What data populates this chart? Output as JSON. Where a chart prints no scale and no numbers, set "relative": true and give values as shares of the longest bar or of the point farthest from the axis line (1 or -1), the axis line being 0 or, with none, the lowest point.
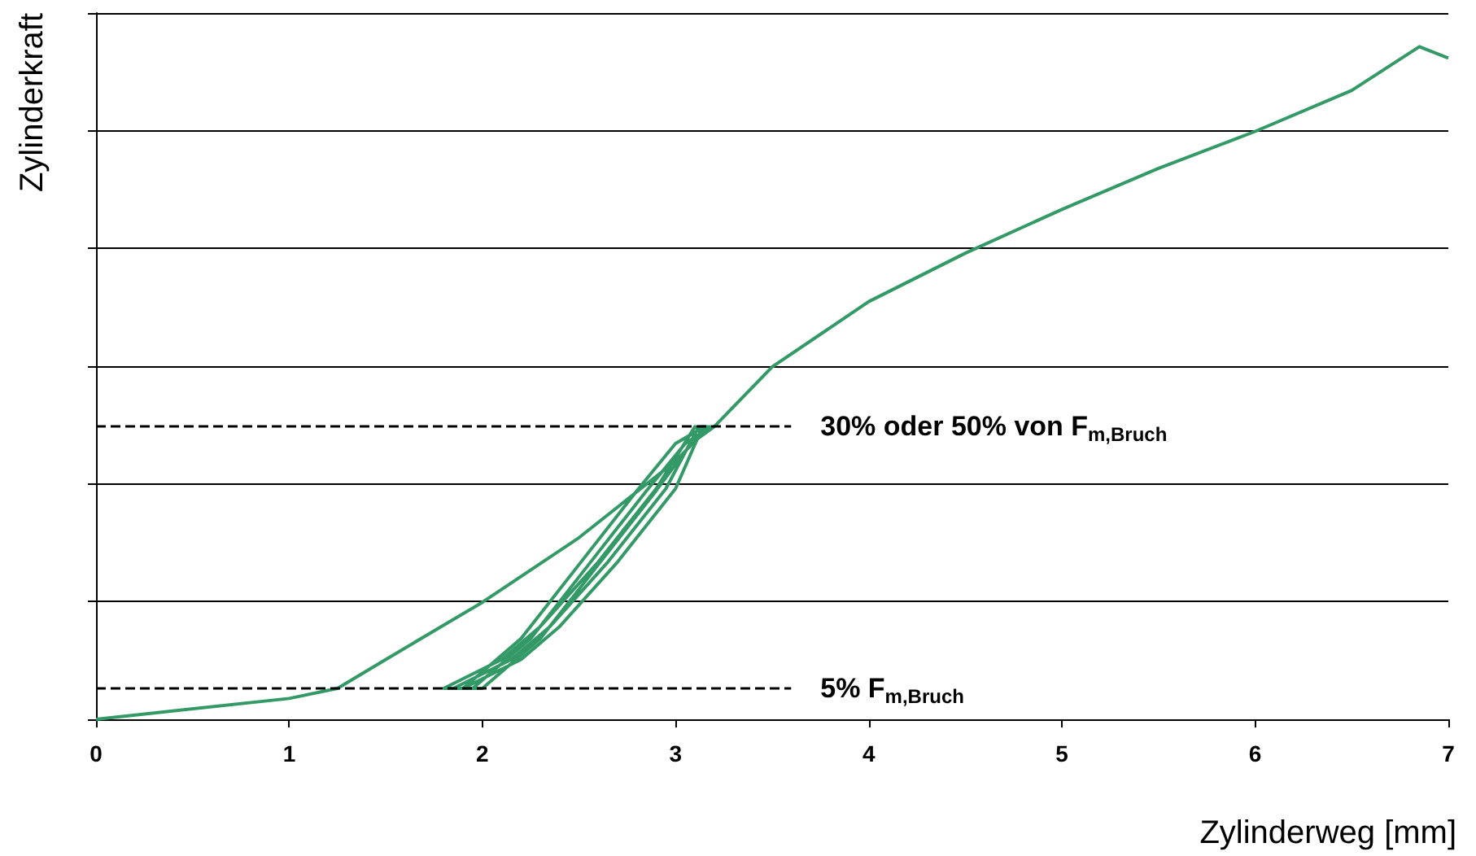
{
  "chart_data": {
    "type": "line",
    "relative": true,
    "xlabel": "Zylinderweg [mm]",
    "ylabel": "Zylinderkraft",
    "xlim": [
      0,
      7
    ],
    "xticks": [
      0,
      1,
      2,
      3,
      4,
      5,
      6,
      7
    ],
    "grid": "y",
    "marker": "none",
    "line_style": "solid",
    "series": [
      {
        "color": "#339966",
        "x": [
          0,
          1,
          1.25,
          1.5,
          2,
          2.5,
          3,
          3.15,
          3.1,
          2.9,
          2.6,
          2.3,
          2.1,
          1.8,
          1.9,
          2.2,
          2.5,
          2.8,
          3.0,
          3.15,
          3.12,
          2.95,
          2.65,
          2.35,
          2.15,
          1.85,
          1.95,
          2.25,
          2.55,
          2.85,
          3.05,
          3.18,
          3.14,
          3.0,
          2.7,
          2.4,
          2.2,
          1.9,
          2.0,
          2.3,
          2.6,
          2.9,
          3.08,
          3.2,
          3.5,
          4,
          4.5,
          5,
          5.5,
          6,
          6.5,
          6.85,
          7
        ],
        "values": [
          0,
          0.031,
          0.046,
          0.089,
          0.174,
          0.27,
          0.384,
          0.428,
          0.435,
          0.343,
          0.234,
          0.138,
          0.089,
          0.046,
          0.046,
          0.12,
          0.23,
          0.34,
          0.41,
          0.435,
          0.435,
          0.343,
          0.234,
          0.138,
          0.089,
          0.046,
          0.046,
          0.12,
          0.23,
          0.34,
          0.41,
          0.435,
          0.435,
          0.343,
          0.234,
          0.138,
          0.089,
          0.046,
          0.046,
          0.12,
          0.23,
          0.34,
          0.41,
          0.435,
          0.524,
          0.621,
          0.693,
          0.758,
          0.819,
          0.874,
          0.935,
          1,
          0.983
        ]
      }
    ],
    "ref_lines": [
      {
        "axis": "y",
        "value": 0.046,
        "label": "5% F$_{m,Bruch}$",
        "color": "#000000",
        "line_style": "dashed"
      },
      {
        "axis": "y",
        "value": 0.435,
        "label": "30% oder 50% von F$_{m,Bruch}$",
        "color": "#000000",
        "line_style": "dashed"
      }
    ]
  }
}
